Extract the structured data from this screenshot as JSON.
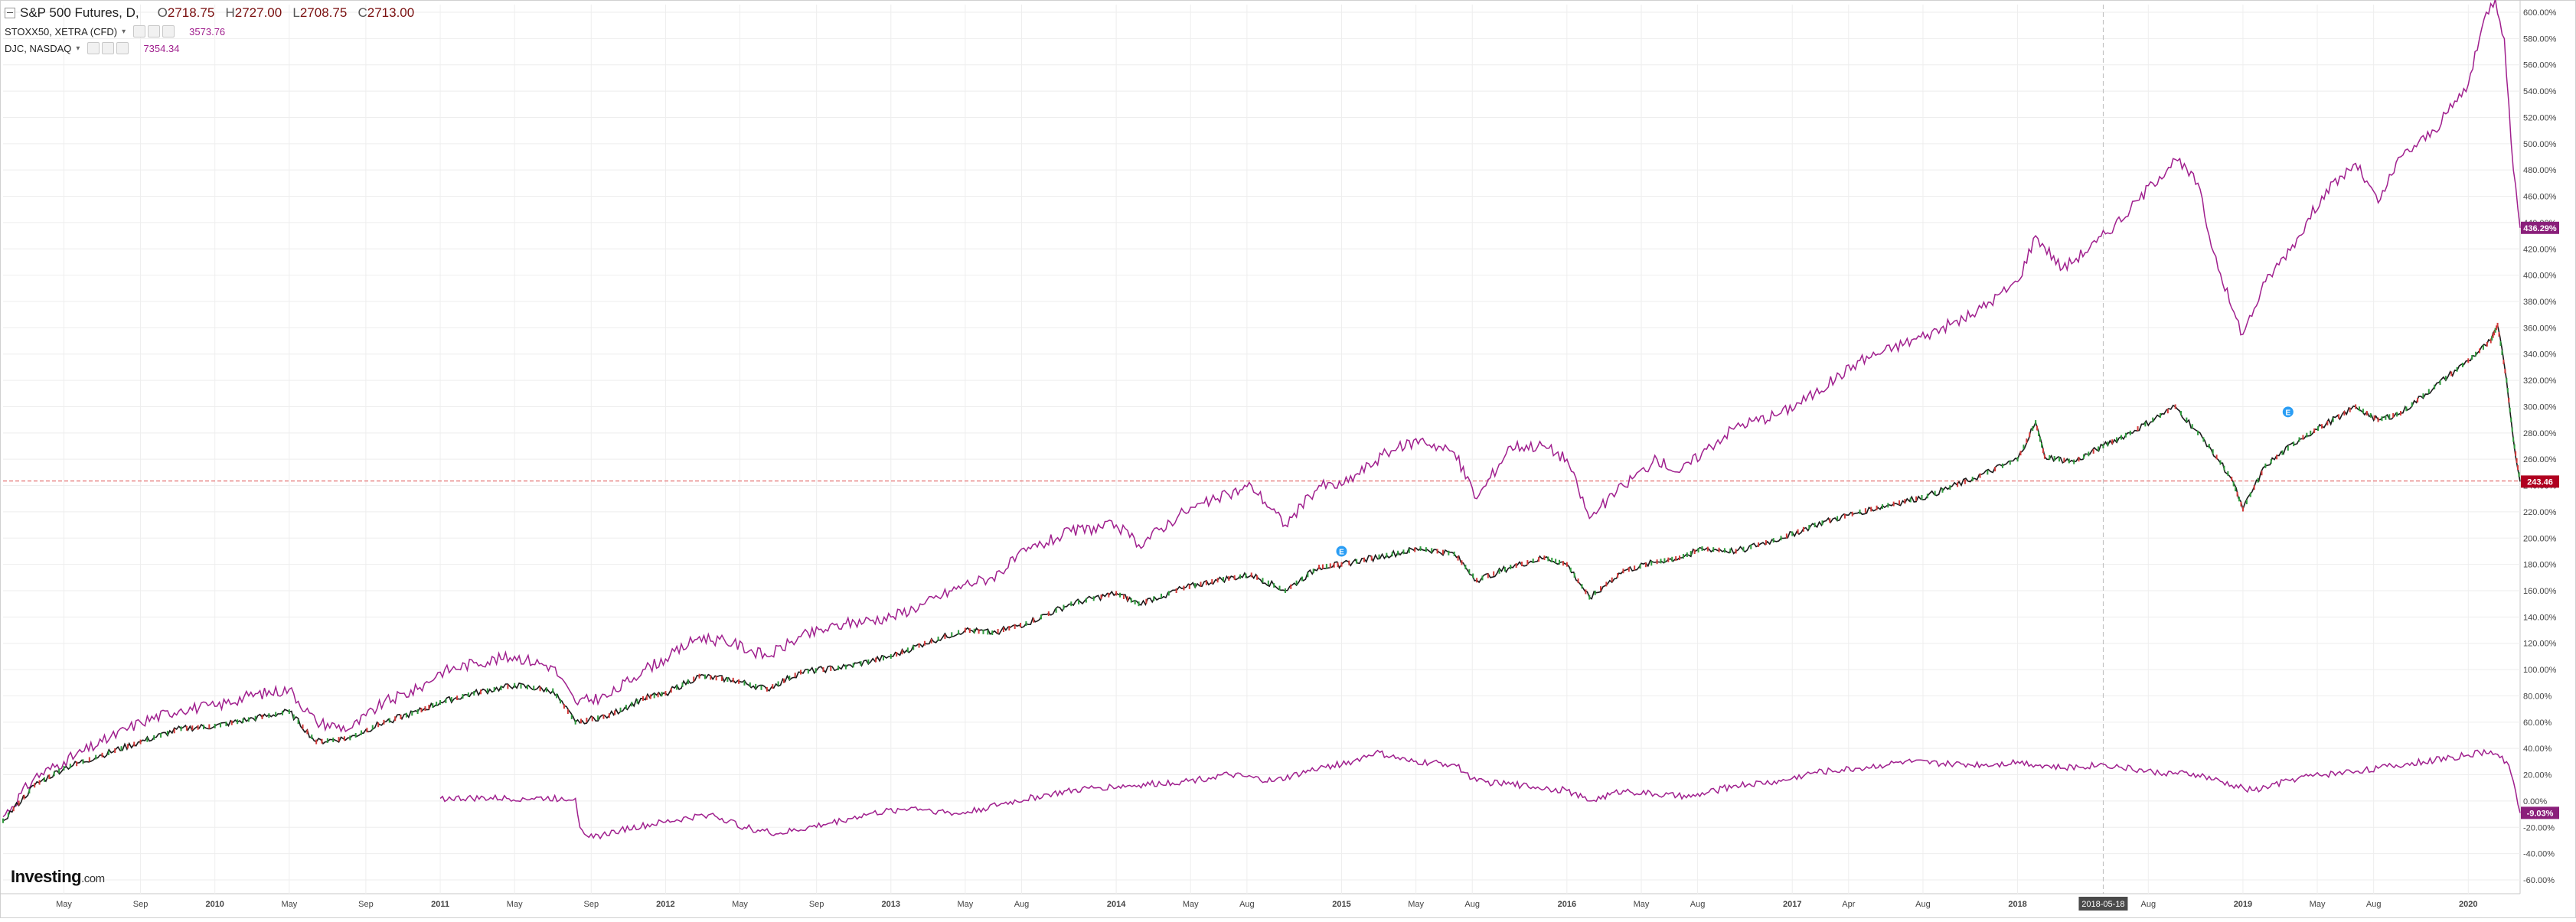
{
  "legend": {
    "main_name": "S&P 500 Futures, D,",
    "open_label": "O",
    "open": "2718.75",
    "high_label": "H",
    "high": "2727.00",
    "low_label": "L",
    "low": "2708.75",
    "close_label": "C",
    "close": "2713.00",
    "series2_name": "STOXX50, XETRA (CFD)",
    "series2_value": "3573.76",
    "series3_name": "DJC, NASDAQ",
    "series3_value": "7354.34"
  },
  "logo": {
    "brand": "Investing",
    "suffix": ".com"
  },
  "colors": {
    "sp500_line": "#1a1a1a",
    "sp500_up": "#2f9a3d",
    "sp500_down": "#d23a3a",
    "stoxx_line": "#a0208e",
    "djc_line": "#a0208e",
    "horizontal_line": "#e57373",
    "grid": "#eeeeee",
    "axis_text": "#444444",
    "label_sp500": "#b00020",
    "label_purple": "#8a1f7a",
    "event_marker": "#2a9df4"
  },
  "chart_data": {
    "type": "line",
    "title": "S&P 500 Futures, D,",
    "y_axis": {
      "unit": "%",
      "min": -60,
      "max": 600,
      "step": 20,
      "position": "right"
    },
    "x_labels": [
      "May",
      "Sep",
      "2010",
      "May",
      "Sep",
      "2011",
      "May",
      "Sep",
      "2012",
      "May",
      "Sep",
      "2013",
      "May",
      "Aug",
      "2014",
      "May",
      "Aug",
      "2015",
      "May",
      "Aug",
      "2016",
      "May",
      "Aug",
      "2017",
      "Apr",
      "Aug",
      "2018",
      "2018-05-18",
      "Aug",
      "2019",
      "May",
      "Aug",
      "2020"
    ],
    "x_label_dates": [
      2009.33,
      2009.67,
      2010.0,
      2010.33,
      2010.67,
      2011.0,
      2011.33,
      2011.67,
      2012.0,
      2012.33,
      2012.67,
      2013.0,
      2013.33,
      2013.58,
      2014.0,
      2014.33,
      2014.58,
      2015.0,
      2015.33,
      2015.58,
      2016.0,
      2016.33,
      2016.58,
      2017.0,
      2017.25,
      2017.58,
      2018.0,
      2018.38,
      2018.58,
      2019.0,
      2019.33,
      2019.58,
      2020.0
    ],
    "crosshair_date": "2018-05-18",
    "x_range": [
      2009.06,
      2020.23
    ],
    "grid": true,
    "series": [
      {
        "name": "STOXX50, XETRA (CFD)",
        "style": "line",
        "last_label": "436.29%",
        "points": [
          [
            2009.06,
            -12
          ],
          [
            2009.2,
            18
          ],
          [
            2009.33,
            30
          ],
          [
            2009.5,
            45
          ],
          [
            2009.67,
            60
          ],
          [
            2009.85,
            70
          ],
          [
            2010.0,
            72
          ],
          [
            2010.15,
            80
          ],
          [
            2010.33,
            85
          ],
          [
            2010.45,
            60
          ],
          [
            2010.6,
            55
          ],
          [
            2010.75,
            75
          ],
          [
            2010.9,
            85
          ],
          [
            2011.0,
            98
          ],
          [
            2011.15,
            105
          ],
          [
            2011.33,
            110
          ],
          [
            2011.5,
            102
          ],
          [
            2011.6,
            75
          ],
          [
            2011.75,
            80
          ],
          [
            2011.9,
            100
          ],
          [
            2012.0,
            108
          ],
          [
            2012.15,
            125
          ],
          [
            2012.3,
            120
          ],
          [
            2012.45,
            110
          ],
          [
            2012.6,
            125
          ],
          [
            2012.8,
            135
          ],
          [
            2013.0,
            140
          ],
          [
            2013.15,
            150
          ],
          [
            2013.33,
            165
          ],
          [
            2013.45,
            170
          ],
          [
            2013.6,
            190
          ],
          [
            2013.8,
            205
          ],
          [
            2014.0,
            210
          ],
          [
            2014.1,
            195
          ],
          [
            2014.3,
            220
          ],
          [
            2014.45,
            230
          ],
          [
            2014.6,
            240
          ],
          [
            2014.75,
            210
          ],
          [
            2014.9,
            240
          ],
          [
            2015.0,
            240
          ],
          [
            2015.2,
            265
          ],
          [
            2015.35,
            275
          ],
          [
            2015.5,
            265
          ],
          [
            2015.6,
            230
          ],
          [
            2015.75,
            270
          ],
          [
            2015.9,
            270
          ],
          [
            2016.0,
            260
          ],
          [
            2016.1,
            215
          ],
          [
            2016.25,
            240
          ],
          [
            2016.4,
            260
          ],
          [
            2016.5,
            250
          ],
          [
            2016.6,
            265
          ],
          [
            2016.75,
            285
          ],
          [
            2016.95,
            295
          ],
          [
            2017.1,
            310
          ],
          [
            2017.3,
            335
          ],
          [
            2017.45,
            345
          ],
          [
            2017.6,
            355
          ],
          [
            2017.8,
            370
          ],
          [
            2018.0,
            395
          ],
          [
            2018.08,
            430
          ],
          [
            2018.2,
            405
          ],
          [
            2018.35,
            425
          ],
          [
            2018.5,
            450
          ],
          [
            2018.6,
            470
          ],
          [
            2018.7,
            488
          ],
          [
            2018.8,
            470
          ],
          [
            2018.85,
            430
          ],
          [
            2018.95,
            375
          ],
          [
            2019.0,
            355
          ],
          [
            2019.1,
            395
          ],
          [
            2019.25,
            430
          ],
          [
            2019.35,
            460
          ],
          [
            2019.5,
            485
          ],
          [
            2019.6,
            455
          ],
          [
            2019.7,
            490
          ],
          [
            2019.85,
            510
          ],
          [
            2020.0,
            545
          ],
          [
            2020.08,
            600
          ],
          [
            2020.12,
            610
          ],
          [
            2020.16,
            580
          ],
          [
            2020.18,
            530
          ],
          [
            2020.2,
            480
          ],
          [
            2020.23,
            436
          ]
        ]
      },
      {
        "name": "S&P 500 Futures",
        "style": "candles",
        "last_label": "243.46",
        "points": [
          [
            2009.06,
            -15
          ],
          [
            2009.2,
            12
          ],
          [
            2009.33,
            25
          ],
          [
            2009.5,
            35
          ],
          [
            2009.67,
            45
          ],
          [
            2009.85,
            55
          ],
          [
            2010.0,
            57
          ],
          [
            2010.15,
            62
          ],
          [
            2010.33,
            68
          ],
          [
            2010.45,
            45
          ],
          [
            2010.6,
            48
          ],
          [
            2010.75,
            60
          ],
          [
            2010.9,
            68
          ],
          [
            2011.0,
            75
          ],
          [
            2011.15,
            82
          ],
          [
            2011.33,
            88
          ],
          [
            2011.5,
            84
          ],
          [
            2011.6,
            60
          ],
          [
            2011.75,
            65
          ],
          [
            2011.9,
            78
          ],
          [
            2012.0,
            82
          ],
          [
            2012.15,
            95
          ],
          [
            2012.3,
            92
          ],
          [
            2012.45,
            85
          ],
          [
            2012.6,
            98
          ],
          [
            2012.8,
            102
          ],
          [
            2013.0,
            110
          ],
          [
            2013.15,
            120
          ],
          [
            2013.33,
            130
          ],
          [
            2013.45,
            128
          ],
          [
            2013.6,
            135
          ],
          [
            2013.8,
            150
          ],
          [
            2014.0,
            158
          ],
          [
            2014.1,
            150
          ],
          [
            2014.3,
            162
          ],
          [
            2014.45,
            168
          ],
          [
            2014.6,
            172
          ],
          [
            2014.75,
            160
          ],
          [
            2014.9,
            178
          ],
          [
            2015.0,
            180
          ],
          [
            2015.2,
            187
          ],
          [
            2015.35,
            192
          ],
          [
            2015.5,
            188
          ],
          [
            2015.6,
            168
          ],
          [
            2015.75,
            178
          ],
          [
            2015.9,
            185
          ],
          [
            2016.0,
            180
          ],
          [
            2016.1,
            155
          ],
          [
            2016.25,
            175
          ],
          [
            2016.4,
            182
          ],
          [
            2016.5,
            185
          ],
          [
            2016.6,
            192
          ],
          [
            2016.75,
            190
          ],
          [
            2016.95,
            200
          ],
          [
            2017.1,
            210
          ],
          [
            2017.3,
            220
          ],
          [
            2017.45,
            226
          ],
          [
            2017.6,
            232
          ],
          [
            2017.8,
            245
          ],
          [
            2018.0,
            260
          ],
          [
            2018.08,
            288
          ],
          [
            2018.12,
            262
          ],
          [
            2018.25,
            258
          ],
          [
            2018.38,
            270
          ],
          [
            2018.5,
            280
          ],
          [
            2018.7,
            300
          ],
          [
            2018.85,
            270
          ],
          [
            2018.95,
            245
          ],
          [
            2019.0,
            222
          ],
          [
            2019.1,
            255
          ],
          [
            2019.25,
            275
          ],
          [
            2019.35,
            285
          ],
          [
            2019.5,
            300
          ],
          [
            2019.6,
            290
          ],
          [
            2019.7,
            295
          ],
          [
            2019.85,
            315
          ],
          [
            2020.0,
            335
          ],
          [
            2020.1,
            350
          ],
          [
            2020.13,
            362
          ],
          [
            2020.17,
            320
          ],
          [
            2020.2,
            275
          ],
          [
            2020.23,
            243
          ]
        ]
      },
      {
        "name": "DJC, NASDAQ",
        "style": "line",
        "last_label": "-9.03%",
        "points": [
          [
            2011.0,
            2
          ],
          [
            2011.6,
            2
          ],
          [
            2011.62,
            -20
          ],
          [
            2011.68,
            -28
          ],
          [
            2011.8,
            -22
          ],
          [
            2012.0,
            -16
          ],
          [
            2012.2,
            -10
          ],
          [
            2012.35,
            -20
          ],
          [
            2012.5,
            -25
          ],
          [
            2012.7,
            -18
          ],
          [
            2012.9,
            -10
          ],
          [
            2013.1,
            -5
          ],
          [
            2013.3,
            -10
          ],
          [
            2013.5,
            -2
          ],
          [
            2013.7,
            5
          ],
          [
            2013.9,
            10
          ],
          [
            2014.1,
            12
          ],
          [
            2014.3,
            15
          ],
          [
            2014.5,
            20
          ],
          [
            2014.7,
            15
          ],
          [
            2014.9,
            25
          ],
          [
            2015.05,
            30
          ],
          [
            2015.15,
            37
          ],
          [
            2015.3,
            30
          ],
          [
            2015.5,
            28
          ],
          [
            2015.6,
            15
          ],
          [
            2015.8,
            12
          ],
          [
            2016.0,
            8
          ],
          [
            2016.1,
            0
          ],
          [
            2016.25,
            8
          ],
          [
            2016.4,
            5
          ],
          [
            2016.55,
            3
          ],
          [
            2016.75,
            12
          ],
          [
            2016.95,
            15
          ],
          [
            2017.1,
            22
          ],
          [
            2017.3,
            25
          ],
          [
            2017.5,
            30
          ],
          [
            2017.7,
            28
          ],
          [
            2017.9,
            28
          ],
          [
            2018.0,
            30
          ],
          [
            2018.2,
            25
          ],
          [
            2018.38,
            28
          ],
          [
            2018.6,
            22
          ],
          [
            2018.8,
            20
          ],
          [
            2018.95,
            12
          ],
          [
            2019.05,
            8
          ],
          [
            2019.25,
            18
          ],
          [
            2019.45,
            22
          ],
          [
            2019.6,
            25
          ],
          [
            2019.8,
            30
          ],
          [
            2020.0,
            35
          ],
          [
            2020.1,
            38
          ],
          [
            2020.17,
            30
          ],
          [
            2020.2,
            15
          ],
          [
            2020.23,
            -9
          ]
        ]
      }
    ],
    "horizontal_line": {
      "value": 243.46,
      "price_label": "243.46"
    },
    "event_markers": [
      {
        "x": 2015.0,
        "y": 190,
        "label": "E"
      },
      {
        "x": 2019.2,
        "y": 296,
        "label": "E"
      }
    ]
  }
}
